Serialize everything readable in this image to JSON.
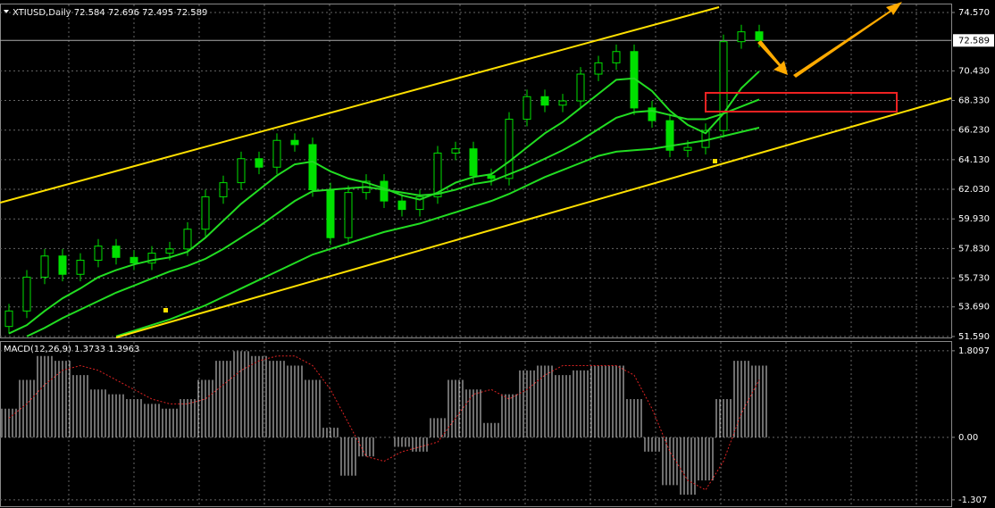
{
  "chart_data": [
    {
      "type": "candlestick",
      "title": "XTIUSD,Daily",
      "header_values": [
        72.584,
        72.696,
        72.495,
        72.589
      ],
      "open": [
        52.3,
        53.4,
        55.8,
        57.3,
        56.0,
        57.0,
        58.0,
        57.2,
        56.8,
        57.5,
        57.8,
        59.2,
        61.5,
        62.5,
        64.2,
        63.6,
        65.5,
        65.2,
        62.0,
        58.6,
        61.8,
        62.6,
        61.2,
        60.6,
        61.5,
        64.6,
        64.9,
        63.0,
        62.8,
        67.0,
        68.6,
        68.0,
        68.3,
        70.2,
        71.0,
        71.8,
        67.8,
        66.9,
        64.8,
        65.0,
        66.2,
        72.5,
        73.2
      ],
      "high": [
        53.9,
        56.3,
        57.8,
        57.8,
        57.5,
        58.5,
        58.5,
        57.7,
        58.0,
        58.3,
        59.7,
        62.0,
        63.0,
        64.7,
        64.7,
        66.0,
        66.0,
        65.7,
        62.5,
        62.3,
        63.1,
        63.1,
        61.7,
        62.0,
        65.1,
        65.4,
        65.4,
        63.5,
        67.5,
        69.1,
        69.1,
        68.8,
        70.7,
        71.5,
        72.3,
        72.3,
        68.3,
        67.4,
        65.5,
        66.7,
        73.0,
        73.7,
        73.7
      ],
      "low": [
        51.8,
        52.9,
        55.3,
        55.5,
        55.5,
        56.5,
        56.7,
        56.3,
        56.3,
        57.0,
        57.3,
        58.7,
        61.0,
        62.0,
        63.1,
        63.1,
        64.7,
        61.5,
        58.1,
        58.1,
        61.3,
        60.7,
        60.1,
        60.1,
        61.0,
        64.1,
        62.5,
        62.3,
        62.3,
        66.5,
        67.5,
        67.5,
        67.8,
        69.7,
        70.5,
        67.3,
        66.4,
        64.3,
        64.3,
        64.5,
        65.7,
        72.0,
        72.09
      ],
      "close": [
        53.4,
        55.8,
        57.3,
        56.0,
        57.0,
        58.0,
        57.2,
        56.8,
        57.5,
        57.8,
        59.2,
        61.5,
        62.5,
        64.2,
        63.6,
        65.5,
        65.2,
        62.0,
        58.6,
        61.8,
        62.6,
        61.2,
        60.6,
        61.5,
        64.6,
        64.9,
        63.0,
        62.8,
        67.0,
        68.6,
        68.0,
        68.3,
        70.2,
        71.0,
        71.8,
        67.8,
        66.9,
        64.8,
        65.0,
        66.2,
        72.5,
        73.2,
        72.59
      ],
      "color": "#00e000",
      "series": [
        {
          "color": "#22dd22",
          "values": [
            51.8,
            52.4,
            53.4,
            54.3,
            55.0,
            55.8,
            56.3,
            56.7,
            57.0,
            57.2,
            57.6,
            58.6,
            59.8,
            61.0,
            62.0,
            63.0,
            63.8,
            64.0,
            63.3,
            62.8,
            62.5,
            62.1,
            61.6,
            61.3,
            61.8,
            62.5,
            62.9,
            63.1,
            64.0,
            65.0,
            66.0,
            66.8,
            67.8,
            68.8,
            69.8,
            69.9,
            69.0,
            67.6,
            66.6,
            66.0,
            67.4,
            69.2,
            70.4
          ]
        },
        {
          "color": "#22dd22",
          "values": [
            null,
            51.6,
            52.2,
            52.9,
            53.5,
            54.1,
            54.7,
            55.2,
            55.7,
            56.2,
            56.6,
            57.1,
            57.8,
            58.6,
            59.4,
            60.3,
            61.2,
            61.9,
            62.0,
            62.1,
            62.2,
            62.0,
            61.8,
            61.6,
            61.7,
            62.0,
            62.4,
            62.6,
            63.1,
            63.6,
            64.2,
            64.8,
            65.5,
            66.3,
            67.1,
            67.5,
            67.6,
            67.3,
            67.0,
            67.0,
            67.4,
            67.9,
            68.4
          ]
        },
        {
          "color": "#22dd22",
          "values": [
            null,
            null,
            null,
            null,
            null,
            null,
            51.6,
            52.0,
            52.4,
            52.8,
            53.3,
            53.8,
            54.4,
            55.0,
            55.6,
            56.2,
            56.8,
            57.4,
            57.8,
            58.2,
            58.6,
            59.0,
            59.3,
            59.6,
            60.0,
            60.4,
            60.8,
            61.2,
            61.7,
            62.3,
            62.9,
            63.4,
            63.9,
            64.4,
            64.7,
            64.8,
            64.9,
            65.1,
            65.3,
            65.5,
            65.8,
            66.1,
            66.4
          ]
        }
      ],
      "last_price": {
        "value": 72.589,
        "label": "72.589"
      },
      "ylim": [
        51.52,
        75.14
      ],
      "yticks": [
        {
          "value": 74.57,
          "label": "74.570"
        },
        {
          "value": 70.43,
          "label": "70.430"
        },
        {
          "value": 68.33,
          "label": "68.330"
        },
        {
          "value": 66.23,
          "label": "66.230"
        },
        {
          "value": 64.13,
          "label": "64.130"
        },
        {
          "value": 62.03,
          "label": "62.030"
        },
        {
          "value": 59.93,
          "label": "59.930"
        },
        {
          "value": 57.83,
          "label": "57.830"
        },
        {
          "value": 55.73,
          "label": "55.730"
        },
        {
          "value": 53.69,
          "label": "53.690"
        },
        {
          "value": 51.59,
          "label": "51.590"
        }
      ],
      "grid": true
    },
    {
      "type": "bar",
      "title": "MACD(12,26,9)",
      "header_values": [
        1.3733,
        1.3963
      ],
      "values": [
        0.6,
        1.2,
        1.7,
        1.6,
        1.3,
        1.0,
        0.9,
        0.8,
        0.7,
        0.6,
        0.8,
        1.2,
        1.6,
        1.8,
        1.7,
        1.6,
        1.5,
        1.2,
        0.2,
        -0.8,
        -0.4,
        0.0,
        -0.2,
        -0.3,
        0.4,
        1.2,
        1.0,
        0.3,
        0.9,
        1.4,
        1.5,
        1.3,
        1.4,
        1.5,
        1.5,
        0.8,
        -0.3,
        -1.0,
        -1.2,
        -0.9,
        0.8,
        1.6,
        1.5
      ],
      "color": "#dddddd",
      "signal": {
        "color": "#dd2222",
        "values": [
          0.4,
          0.7,
          1.1,
          1.4,
          1.5,
          1.4,
          1.2,
          1.0,
          0.8,
          0.7,
          0.7,
          0.8,
          1.1,
          1.4,
          1.6,
          1.7,
          1.7,
          1.5,
          1.0,
          0.3,
          -0.4,
          -0.5,
          -0.3,
          -0.2,
          -0.1,
          0.4,
          0.9,
          1.0,
          0.8,
          1.0,
          1.3,
          1.5,
          1.5,
          1.5,
          1.5,
          1.3,
          0.6,
          -0.3,
          -0.9,
          -1.1,
          -0.5,
          0.5,
          1.2
        ]
      },
      "ylim": [
        -1.44,
        1.994
      ],
      "yticks": [
        1.8097,
        {
          "value": 0,
          "label": "0.00"
        },
        -1.307
      ],
      "grid": true
    }
  ]
}
